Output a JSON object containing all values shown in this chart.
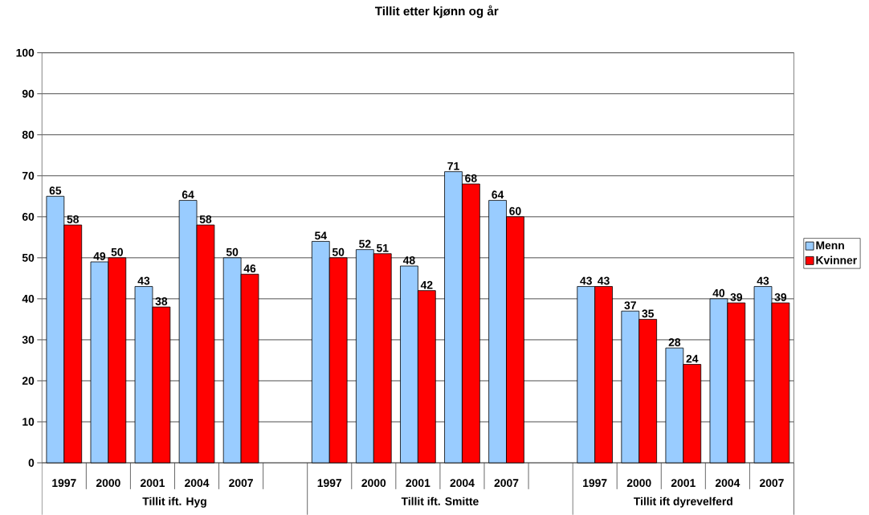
{
  "chart_data": {
    "type": "bar",
    "title": "Tillit etter kjønn og år",
    "categories": [
      "1997",
      "2000",
      "2001",
      "2004",
      "2007",
      null,
      "1997",
      "2000",
      "2001",
      "2004",
      "2007",
      null,
      "1997",
      "2000",
      "2001",
      "2004",
      "2007"
    ],
    "series": [
      {
        "name": "Menn",
        "color": "#99ccff",
        "values": [
          65,
          49,
          43,
          64,
          50,
          null,
          54,
          52,
          48,
          71,
          64,
          null,
          43,
          37,
          28,
          40,
          43
        ]
      },
      {
        "name": "Kvinner",
        "color": "#ff0000",
        "values": [
          58,
          50,
          38,
          58,
          46,
          null,
          50,
          51,
          42,
          68,
          60,
          null,
          43,
          35,
          24,
          39,
          39
        ]
      }
    ],
    "ylim": [
      0,
      100
    ],
    "yticks": [
      0,
      10,
      20,
      30,
      40,
      50,
      60,
      70,
      80,
      90,
      100
    ],
    "grid": "y",
    "legend": "right",
    "data_labels": true,
    "annotations": [
      "Tillit ift. Hyg",
      "Tillit ift. Smitte",
      "Tillit ift dyrevelferd"
    ]
  }
}
